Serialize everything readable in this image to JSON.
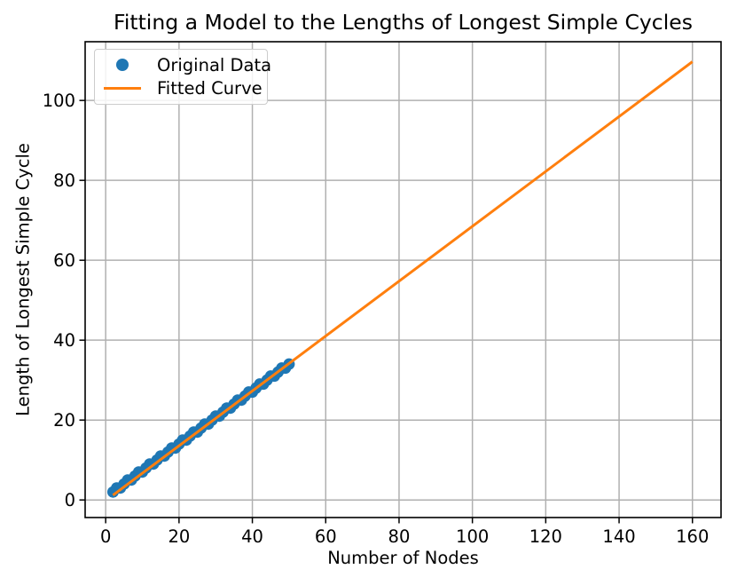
{
  "chart_data": {
    "type": "scatter",
    "title": "Fitting a Model to the Lengths of Longest Simple Cycles",
    "xlabel": "Number of Nodes",
    "ylabel": "Length of Longest Simple Cycle",
    "xticks": [
      0,
      20,
      40,
      60,
      80,
      100,
      120,
      140,
      160
    ],
    "yticks": [
      0,
      20,
      40,
      60,
      80,
      100
    ],
    "xlim": [
      -5.6,
      167.8
    ],
    "ylim": [
      -4.4,
      114.7
    ],
    "grid": true,
    "legend_position": "upper left",
    "colors": {
      "grid": "#b0b0b0",
      "spine": "#000000",
      "text": "#000000",
      "background": "#ffffff",
      "scatter": "#1f77b4",
      "line": "#ff7f0e"
    },
    "series": [
      {
        "name": "Original Data",
        "type": "scatter",
        "color": "#1f77b4",
        "marker": "dot",
        "marker_size": 13,
        "x": [
          2,
          3,
          4,
          5,
          6,
          7,
          8,
          9,
          10,
          11,
          12,
          13,
          14,
          15,
          16,
          17,
          18,
          19,
          20,
          21,
          22,
          23,
          24,
          25,
          26,
          27,
          28,
          29,
          30,
          31,
          32,
          33,
          34,
          35,
          36,
          37,
          38,
          39,
          40,
          41,
          42,
          43,
          44,
          45,
          46,
          47,
          48,
          49,
          50
        ],
        "y": [
          2,
          3,
          3,
          4,
          5,
          5,
          6,
          7,
          7,
          8,
          9,
          9,
          10,
          11,
          11,
          12,
          13,
          13,
          14,
          15,
          15,
          16,
          17,
          17,
          18,
          19,
          19,
          20,
          21,
          21,
          22,
          23,
          23,
          24,
          25,
          25,
          26,
          27,
          27,
          28,
          29,
          29,
          30,
          31,
          31,
          32,
          33,
          33,
          34
        ]
      },
      {
        "name": "Fitted Curve",
        "type": "line",
        "color": "#ff7f0e",
        "line_width": 3,
        "x": [
          2,
          160
        ],
        "y": [
          1.2,
          109.7
        ]
      }
    ]
  }
}
